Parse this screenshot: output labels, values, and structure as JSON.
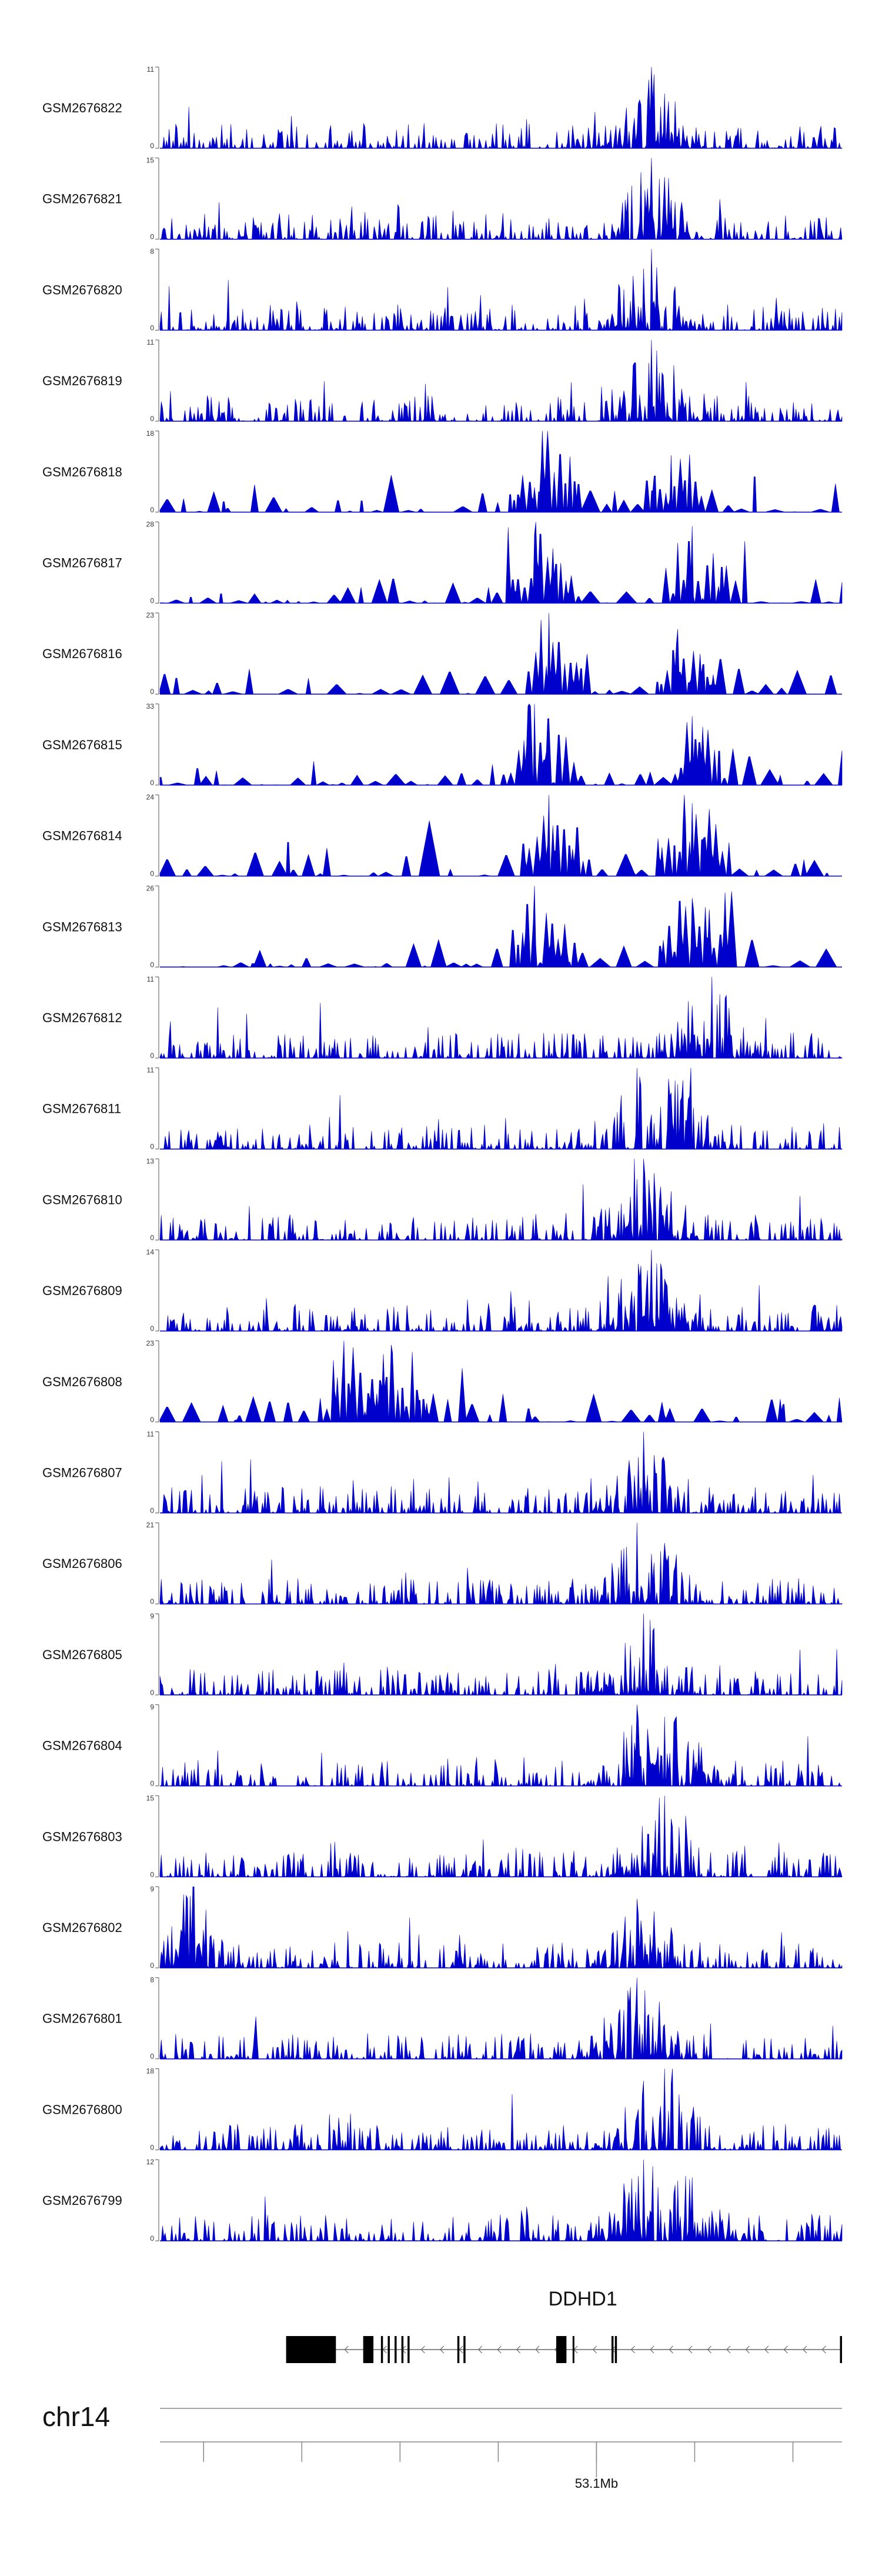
{
  "chart_data": {
    "type": "area",
    "title": "",
    "track_color": "#0000cc",
    "axis_color": "#555555",
    "tracks": [
      {
        "name": "GSM2676822",
        "ymax": 11,
        "ymin": 0,
        "seed": 22,
        "peaks": [
          [
            0.72,
            1.0
          ]
        ],
        "sparse": false
      },
      {
        "name": "GSM2676821",
        "ymax": 15,
        "ymin": 0,
        "seed": 21,
        "peaks": [
          [
            0.72,
            1.0
          ]
        ],
        "sparse": false
      },
      {
        "name": "GSM2676820",
        "ymax": 8,
        "ymin": 0,
        "seed": 20,
        "peaks": [
          [
            0.72,
            1.0
          ]
        ],
        "sparse": false
      },
      {
        "name": "GSM2676819",
        "ymax": 11,
        "ymin": 0,
        "seed": 19,
        "peaks": [
          [
            0.72,
            1.0
          ]
        ],
        "sparse": false
      },
      {
        "name": "GSM2676818",
        "ymax": 18,
        "ymin": 0,
        "seed": 18,
        "peaks": [
          [
            0.56,
            1.0
          ],
          [
            0.75,
            0.7
          ]
        ],
        "sparse": true
      },
      {
        "name": "GSM2676817",
        "ymax": 28,
        "ymin": 0,
        "seed": 17,
        "peaks": [
          [
            0.55,
            0.85
          ],
          [
            0.78,
            0.95
          ]
        ],
        "sparse": true
      },
      {
        "name": "GSM2676816",
        "ymax": 23,
        "ymin": 0,
        "seed": 16,
        "peaks": [
          [
            0.57,
            1.0
          ],
          [
            0.76,
            0.8
          ]
        ],
        "sparse": true
      },
      {
        "name": "GSM2676815",
        "ymax": 33,
        "ymin": 0,
        "seed": 15,
        "peaks": [
          [
            0.55,
            1.0
          ],
          [
            0.78,
            0.85
          ]
        ],
        "sparse": true
      },
      {
        "name": "GSM2676814",
        "ymax": 24,
        "ymin": 0,
        "seed": 14,
        "peaks": [
          [
            0.57,
            1.0
          ],
          [
            0.78,
            0.9
          ]
        ],
        "sparse": true
      },
      {
        "name": "GSM2676813",
        "ymax": 26,
        "ymin": 0,
        "seed": 13,
        "peaks": [
          [
            0.55,
            1.0
          ],
          [
            0.78,
            0.85
          ]
        ],
        "sparse": true
      },
      {
        "name": "GSM2676812",
        "ymax": 11,
        "ymin": 0,
        "seed": 12,
        "peaks": [
          [
            0.81,
            1.0
          ]
        ],
        "sparse": false
      },
      {
        "name": "GSM2676811",
        "ymax": 11,
        "ymin": 0,
        "seed": 11,
        "peaks": [
          [
            0.7,
            1.0
          ],
          [
            0.76,
            0.8
          ]
        ],
        "sparse": false
      },
      {
        "name": "GSM2676810",
        "ymax": 13,
        "ymin": 0,
        "seed": 10,
        "peaks": [
          [
            0.71,
            1.0
          ]
        ],
        "sparse": false
      },
      {
        "name": "GSM2676809",
        "ymax": 14,
        "ymin": 0,
        "seed": 9,
        "peaks": [
          [
            0.72,
            1.0
          ]
        ],
        "sparse": false
      },
      {
        "name": "GSM2676808",
        "ymax": 23,
        "ymin": 0,
        "seed": 8,
        "peaks": [
          [
            0.27,
            1.0
          ],
          [
            0.34,
            0.95
          ]
        ],
        "sparse": true
      },
      {
        "name": "GSM2676807",
        "ymax": 11,
        "ymin": 0,
        "seed": 7,
        "peaks": [
          [
            0.71,
            1.0
          ]
        ],
        "sparse": false
      },
      {
        "name": "GSM2676806",
        "ymax": 21,
        "ymin": 0,
        "seed": 6,
        "peaks": [
          [
            0.7,
            1.0
          ],
          [
            0.74,
            0.75
          ]
        ],
        "sparse": false
      },
      {
        "name": "GSM2676805",
        "ymax": 9,
        "ymin": 0,
        "seed": 5,
        "peaks": [
          [
            0.71,
            1.0
          ]
        ],
        "sparse": false
      },
      {
        "name": "GSM2676804",
        "ymax": 9,
        "ymin": 0,
        "seed": 4,
        "peaks": [
          [
            0.7,
            1.0
          ],
          [
            0.74,
            0.85
          ]
        ],
        "sparse": false
      },
      {
        "name": "GSM2676803",
        "ymax": 15,
        "ymin": 0,
        "seed": 3,
        "peaks": [
          [
            0.74,
            1.0
          ]
        ],
        "sparse": false
      },
      {
        "name": "GSM2676802",
        "ymax": 9,
        "ymin": 0,
        "seed": 2,
        "peaks": [
          [
            0.05,
            1.0
          ],
          [
            0.7,
            0.85
          ]
        ],
        "sparse": false
      },
      {
        "name": "GSM2676801",
        "ymax": 8,
        "ymin": 0,
        "seed": 1,
        "peaks": [
          [
            0.7,
            1.0
          ]
        ],
        "sparse": false
      },
      {
        "name": "GSM2676800",
        "ymax": 18,
        "ymin": 0,
        "seed": 30,
        "peaks": [
          [
            0.74,
            1.0
          ],
          [
            0.71,
            0.85
          ]
        ],
        "sparse": false
      },
      {
        "name": "GSM2676799",
        "ymax": 12,
        "ymin": 0,
        "seed": 31,
        "peaks": [
          [
            0.71,
            1.0
          ],
          [
            0.77,
            0.8
          ]
        ],
        "sparse": false
      }
    ],
    "gene": {
      "name": "DDHD1",
      "strand": "-",
      "span": [
        0.185,
        1.0
      ],
      "exons": [
        [
          0.185,
          0.258,
          1.0
        ],
        [
          0.298,
          0.313,
          1.0
        ],
        [
          0.324,
          0.327,
          1.0
        ],
        [
          0.334,
          0.337,
          1.0
        ],
        [
          0.344,
          0.347,
          1.0
        ],
        [
          0.354,
          0.357,
          1.0
        ],
        [
          0.363,
          0.366,
          1.0
        ],
        [
          0.436,
          0.439,
          1.0
        ],
        [
          0.445,
          0.448,
          1.0
        ],
        [
          0.581,
          0.596,
          1.0
        ],
        [
          0.605,
          0.607,
          1.0
        ],
        [
          0.662,
          0.665,
          1.0
        ],
        [
          0.667,
          0.67,
          1.0
        ],
        [
          0.997,
          1.0,
          1.0
        ]
      ]
    },
    "chromosome": "chr14",
    "x_axis": {
      "unit": "Mb",
      "tick_positions": [
        0.064,
        0.208,
        0.352,
        0.496,
        0.64,
        0.784,
        0.928
      ],
      "labeled_tick": {
        "position": 0.64,
        "label": "53.1Mb"
      }
    }
  }
}
